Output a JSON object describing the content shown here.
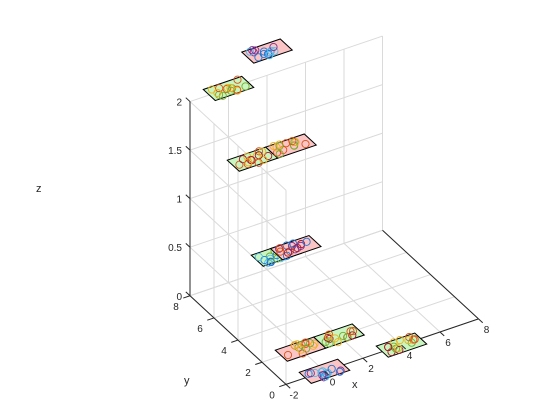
{
  "chart_data": {
    "type": "scatter",
    "subtype": "3d-scatter-with-planar-patches",
    "title": "",
    "xlabel": "x",
    "ylabel": "y",
    "zlabel": "z",
    "xlim": [
      -2,
      8
    ],
    "ylim": [
      0,
      8
    ],
    "zlim": [
      0,
      2
    ],
    "xticks": [
      "-2",
      "0",
      "2",
      "4",
      "6",
      "8"
    ],
    "yticks": [
      "0",
      "2",
      "4",
      "6",
      "8"
    ],
    "zticks": [
      "0",
      "0.5",
      "1",
      "1.5",
      "2"
    ],
    "grid": true,
    "legend": "none",
    "marker": "open-circle",
    "patch_colors": {
      "red": "#fcc5c5",
      "green": "#c9f5c0"
    },
    "marker_colors": [
      "#1f77d4",
      "#d95319",
      "#edb120",
      "#7e2f8e",
      "#77ac30",
      "#4dbeee",
      "#a2142f"
    ],
    "patches": [
      {
        "x": [
          -1,
          1
        ],
        "y": [
          -0.5,
          0.5
        ],
        "z": 0,
        "color": "red",
        "marker_colors": [
          "#1f77d4",
          "#4dbeee",
          "#7e2f8e"
        ]
      },
      {
        "x": [
          3,
          5
        ],
        "y": [
          -0.5,
          0.5
        ],
        "z": 0,
        "color": "green",
        "marker_colors": [
          "#d95319",
          "#edb120",
          "#77ac30",
          "#a2142f"
        ]
      },
      {
        "x": [
          -1,
          1
        ],
        "y": [
          1.5,
          2.5
        ],
        "z": 0,
        "color": "red",
        "marker_colors": [
          "#d95319",
          "#edb120",
          "#77ac30"
        ]
      },
      {
        "x": [
          1,
          3
        ],
        "y": [
          1.5,
          2.5
        ],
        "z": 0,
        "color": "green",
        "marker_colors": [
          "#d95319",
          "#77ac30",
          "#a2142f",
          "#edb120"
        ]
      },
      {
        "x": [
          -1,
          1
        ],
        "y": [
          3.5,
          4.5
        ],
        "z": 0.75,
        "color": "green",
        "marker_colors": [
          "#1f77d4",
          "#4dbeee",
          "#77ac30"
        ]
      },
      {
        "x": [
          0,
          2
        ],
        "y": [
          3.5,
          4.5
        ],
        "z": 0.75,
        "color": "red",
        "marker_colors": [
          "#7e2f8e",
          "#1f77d4",
          "#a2142f",
          "#d95319"
        ]
      },
      {
        "x": [
          -1,
          1
        ],
        "y": [
          5.5,
          6.5
        ],
        "z": 1.5,
        "color": "green",
        "marker_colors": [
          "#d95319",
          "#edb120",
          "#a2142f"
        ]
      },
      {
        "x": [
          1,
          3
        ],
        "y": [
          5.5,
          6.5
        ],
        "z": 1.5,
        "color": "red",
        "marker_colors": [
          "#d95319",
          "#77ac30",
          "#edb120"
        ]
      },
      {
        "x": [
          -1,
          1
        ],
        "y": [
          7.5,
          8.5
        ],
        "z": 2,
        "color": "green",
        "marker_colors": [
          "#edb120",
          "#77ac30",
          "#d95319"
        ]
      },
      {
        "x": [
          1,
          3
        ],
        "y": [
          7.5,
          8.5
        ],
        "z": 2.25,
        "color": "red",
        "marker_colors": [
          "#1f77d4",
          "#4dbeee",
          "#7e2f8e"
        ]
      }
    ],
    "points_per_patch": 14
  }
}
